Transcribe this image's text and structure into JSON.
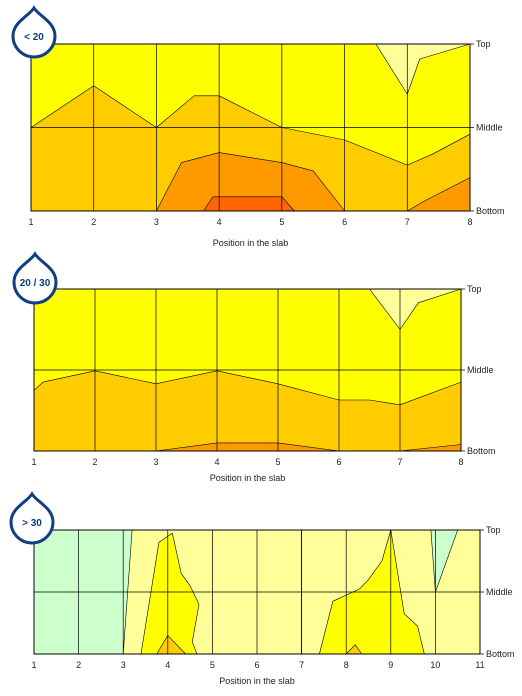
{
  "colors": {
    "pale": "#ffff99",
    "yellow": "#ffff00",
    "lightorange": "#ffcc00",
    "orange": "#ff9900",
    "deeporange": "#ff6600",
    "mint": "#ccffcc",
    "badge": "#123f80"
  },
  "chart_data": [
    {
      "type": "area",
      "badge": "< 20",
      "xlabel": "Position  in the slab",
      "x": [
        1,
        2,
        3,
        4,
        5,
        6,
        7,
        8
      ],
      "y_ticks": [
        "Top",
        "Middle",
        "Bottom"
      ],
      "grid": true,
      "zones": [
        {
          "color": "yellow",
          "points": [
            [
              1,
              2
            ],
            [
              2,
              2
            ],
            [
              3,
              2
            ],
            [
              4,
              2
            ],
            [
              5,
              2
            ],
            [
              6,
              2
            ],
            [
              7,
              2
            ],
            [
              8,
              2
            ],
            [
              8,
              0
            ],
            [
              1,
              0
            ]
          ]
        },
        {
          "color": "pale",
          "points": [
            [
              6.5,
              2
            ],
            [
              7,
              1.4
            ],
            [
              7.2,
              1.82
            ],
            [
              8,
              2
            ]
          ]
        },
        {
          "color": "lightorange",
          "points": [
            [
              1,
              1
            ],
            [
              2,
              1.5
            ],
            [
              3,
              1
            ],
            [
              3.6,
              1.38
            ],
            [
              4,
              1.38
            ],
            [
              5,
              1
            ],
            [
              6,
              0.85
            ],
            [
              7,
              0.55
            ],
            [
              7.4,
              0.68
            ],
            [
              8,
              0.92
            ],
            [
              8,
              0
            ],
            [
              1,
              0
            ]
          ]
        },
        {
          "color": "orange",
          "points": [
            [
              3,
              0
            ],
            [
              3.4,
              0.58
            ],
            [
              4,
              0.7
            ],
            [
              5,
              0.58
            ],
            [
              5.5,
              0.48
            ],
            [
              6,
              0
            ],
            [
              7,
              0
            ],
            [
              7.3,
              0.13
            ],
            [
              8,
              0.4
            ],
            [
              8,
              0
            ]
          ]
        },
        {
          "color": "deeporange",
          "points": [
            [
              3.75,
              0
            ],
            [
              3.9,
              0.17
            ],
            [
              5,
              0.17
            ],
            [
              5.2,
              0
            ]
          ]
        }
      ]
    },
    {
      "type": "area",
      "badge": "20 / 30",
      "xlabel": "Position  in the slab",
      "x": [
        1,
        2,
        3,
        4,
        5,
        6,
        7,
        8
      ],
      "y_ticks": [
        "Top",
        "Middle",
        "Bottom"
      ],
      "grid": true,
      "zones": [
        {
          "color": "yellow",
          "points": [
            [
              1,
              2
            ],
            [
              8,
              2
            ],
            [
              8,
              0
            ],
            [
              1,
              0
            ]
          ]
        },
        {
          "color": "pale",
          "points": [
            [
              6.5,
              2
            ],
            [
              7,
              1.5
            ],
            [
              7.3,
              1.83
            ],
            [
              8,
              2
            ]
          ]
        },
        {
          "color": "lightorange",
          "points": [
            [
              1,
              0.75
            ],
            [
              1.15,
              0.85
            ],
            [
              2,
              0.99
            ],
            [
              3,
              0.83
            ],
            [
              4,
              0.99
            ],
            [
              5,
              0.83
            ],
            [
              6,
              0.63
            ],
            [
              6.5,
              0.63
            ],
            [
              7,
              0.57
            ],
            [
              8,
              0.85
            ],
            [
              8,
              0
            ],
            [
              1,
              0
            ]
          ]
        },
        {
          "color": "orange",
          "points": [
            [
              3,
              0
            ],
            [
              4,
              0.1
            ],
            [
              5,
              0.1
            ],
            [
              6,
              0
            ],
            [
              7,
              0
            ],
            [
              8,
              0.08
            ],
            [
              8,
              0
            ]
          ]
        }
      ]
    },
    {
      "type": "area",
      "badge": "> 30",
      "xlabel": "Position  in the slab",
      "x": [
        1,
        2,
        3,
        4,
        5,
        6,
        7,
        8,
        9,
        10,
        11
      ],
      "y_ticks": [
        "Top",
        "Middle",
        "Bottom"
      ],
      "grid": true,
      "zones": [
        {
          "color": "mint",
          "points": [
            [
              1,
              2
            ],
            [
              11,
              2
            ],
            [
              11,
              0
            ],
            [
              1,
              0
            ]
          ]
        },
        {
          "color": "pale",
          "points": [
            [
              3,
              0
            ],
            [
              3.2,
              2
            ],
            [
              7,
              2
            ],
            [
              7,
              0
            ]
          ]
        },
        {
          "color": "pale",
          "points": [
            [
              7,
              2
            ],
            [
              9.9,
              2
            ],
            [
              10,
              1
            ],
            [
              10.5,
              2
            ],
            [
              11,
              2
            ],
            [
              11,
              0
            ],
            [
              7,
              0
            ]
          ]
        },
        {
          "color": "yellow",
          "points": [
            [
              3.4,
              0
            ],
            [
              3.8,
              1.8
            ],
            [
              4.1,
              1.95
            ],
            [
              4.3,
              1.3
            ],
            [
              4.5,
              1.1
            ],
            [
              4.7,
              0.8
            ],
            [
              4.55,
              0.2
            ],
            [
              4.65,
              0
            ],
            [
              3.4,
              0
            ]
          ]
        },
        {
          "color": "yellow",
          "points": [
            [
              7.4,
              0
            ],
            [
              7.7,
              0.85
            ],
            [
              8.3,
              1.05
            ],
            [
              8.5,
              1.2
            ],
            [
              8.8,
              1.5
            ],
            [
              9,
              2
            ],
            [
              9.3,
              0.65
            ],
            [
              9.6,
              0.45
            ],
            [
              9.75,
              0
            ]
          ]
        },
        {
          "color": "lightorange",
          "points": [
            [
              3.75,
              0
            ],
            [
              4,
              0.3
            ],
            [
              4.4,
              0
            ]
          ]
        },
        {
          "color": "lightorange",
          "points": [
            [
              8,
              0
            ],
            [
              8.2,
              0.15
            ],
            [
              8.35,
              0
            ]
          ]
        }
      ]
    }
  ]
}
